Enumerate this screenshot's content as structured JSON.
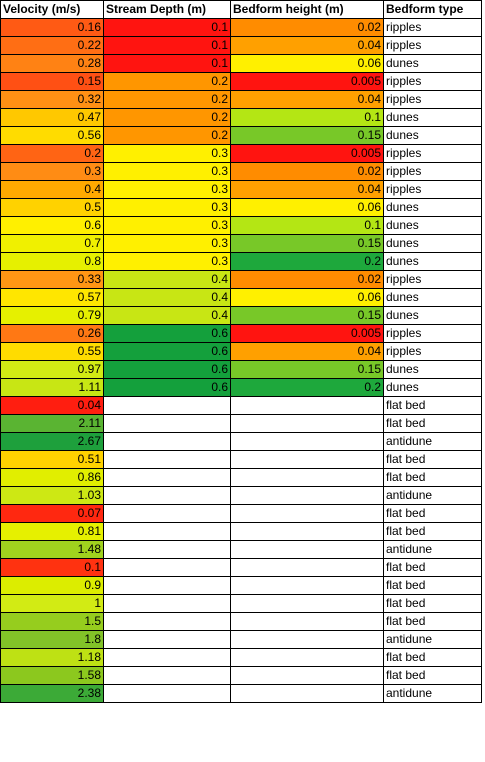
{
  "headers": [
    "Velocity (m/s)",
    "Stream Depth (m)",
    "Bedform height (m)",
    "Bedform type"
  ],
  "rows": [
    {
      "velocity": "0.16",
      "depth": "0.1",
      "height": "0.02",
      "type": "ripples",
      "vc": "#FF5A14",
      "dc": "#FF1410",
      "hc": "#FF8C00"
    },
    {
      "velocity": "0.22",
      "depth": "0.1",
      "height": "0.04",
      "type": "ripples",
      "vc": "#FF6E14",
      "dc": "#FF1410",
      "hc": "#FFA000"
    },
    {
      "velocity": "0.28",
      "depth": "0.1",
      "height": "0.06",
      "type": "dunes",
      "vc": "#FF8214",
      "dc": "#FF1410",
      "hc": "#FFF000"
    },
    {
      "velocity": "0.15",
      "depth": "0.2",
      "height": "0.005",
      "type": "ripples",
      "vc": "#FF5014",
      "dc": "#FF9600",
      "hc": "#FF1410"
    },
    {
      "velocity": "0.32",
      "depth": "0.2",
      "height": "0.04",
      "type": "ripples",
      "vc": "#FF9014",
      "dc": "#FF9600",
      "hc": "#FFA000"
    },
    {
      "velocity": "0.47",
      "depth": "0.2",
      "height": "0.1",
      "type": "dunes",
      "vc": "#FFC800",
      "dc": "#FF9600",
      "hc": "#B4E614"
    },
    {
      "velocity": "0.56",
      "depth": "0.2",
      "height": "0.15",
      "type": "dunes",
      "vc": "#FFDC00",
      "dc": "#FF9600",
      "hc": "#78C828"
    },
    {
      "velocity": "0.2",
      "depth": "0.3",
      "height": "0.005",
      "type": "ripples",
      "vc": "#FF6414",
      "dc": "#FFF000",
      "hc": "#FF1410"
    },
    {
      "velocity": "0.3",
      "depth": "0.3",
      "height": "0.02",
      "type": "ripples",
      "vc": "#FF8C14",
      "dc": "#FFF000",
      "hc": "#FF8C00"
    },
    {
      "velocity": "0.4",
      "depth": "0.3",
      "height": "0.04",
      "type": "ripples",
      "vc": "#FFAA00",
      "dc": "#FFF000",
      "hc": "#FFA000"
    },
    {
      "velocity": "0.5",
      "depth": "0.3",
      "height": "0.06",
      "type": "dunes",
      "vc": "#FFD200",
      "dc": "#FFF000",
      "hc": "#FFF000"
    },
    {
      "velocity": "0.6",
      "depth": "0.3",
      "height": "0.1",
      "type": "dunes",
      "vc": "#FFF000",
      "dc": "#FFF000",
      "hc": "#B4E614"
    },
    {
      "velocity": "0.7",
      "depth": "0.3",
      "height": "0.15",
      "type": "dunes",
      "vc": "#F0F000",
      "dc": "#FFF000",
      "hc": "#78C828"
    },
    {
      "velocity": "0.8",
      "depth": "0.3",
      "height": "0.2",
      "type": "dunes",
      "vc": "#E6F000",
      "dc": "#FFF000",
      "hc": "#1EA83C"
    },
    {
      "velocity": "0.33",
      "depth": "0.4",
      "height": "0.02",
      "type": "ripples",
      "vc": "#FF9614",
      "dc": "#C8E614",
      "hc": "#FF8C00"
    },
    {
      "velocity": "0.57",
      "depth": "0.4",
      "height": "0.06",
      "type": "dunes",
      "vc": "#FFE600",
      "dc": "#C8E614",
      "hc": "#FFF000"
    },
    {
      "velocity": "0.79",
      "depth": "0.4",
      "height": "0.15",
      "type": "dunes",
      "vc": "#E6F000",
      "dc": "#C8E614",
      "hc": "#78C828"
    },
    {
      "velocity": "0.26",
      "depth": "0.6",
      "height": "0.005",
      "type": "ripples",
      "vc": "#FF7814",
      "dc": "#14A03C",
      "hc": "#FF1410"
    },
    {
      "velocity": "0.55",
      "depth": "0.6",
      "height": "0.04",
      "type": "ripples",
      "vc": "#FFDC00",
      "dc": "#14A03C",
      "hc": "#FFA000"
    },
    {
      "velocity": "0.97",
      "depth": "0.6",
      "height": "0.15",
      "type": "dunes",
      "vc": "#D2EB14",
      "dc": "#14A03C",
      "hc": "#78C828"
    },
    {
      "velocity": "1.11",
      "depth": "0.6",
      "height": "0.2",
      "type": "dunes",
      "vc": "#C8E614",
      "dc": "#14A03C",
      "hc": "#1EA83C"
    },
    {
      "velocity": "0.04",
      "depth": "",
      "height": "",
      "type": "flat bed",
      "vc": "#FF1E10",
      "dc": "",
      "hc": ""
    },
    {
      "velocity": "2.11",
      "depth": "",
      "height": "",
      "type": "flat bed",
      "vc": "#5AB432",
      "dc": "",
      "hc": ""
    },
    {
      "velocity": "2.67",
      "depth": "",
      "height": "",
      "type": "antidune",
      "vc": "#1EA03C",
      "dc": "",
      "hc": ""
    },
    {
      "velocity": "0.51",
      "depth": "",
      "height": "",
      "type": "flat bed",
      "vc": "#FFD200",
      "dc": "",
      "hc": ""
    },
    {
      "velocity": "0.86",
      "depth": "",
      "height": "",
      "type": "flat bed",
      "vc": "#E1EE00",
      "dc": "",
      "hc": ""
    },
    {
      "velocity": "1.03",
      "depth": "",
      "height": "",
      "type": "antidune",
      "vc": "#CDE814",
      "dc": "",
      "hc": ""
    },
    {
      "velocity": "0.07",
      "depth": "",
      "height": "",
      "type": "flat bed",
      "vc": "#FF2810",
      "dc": "",
      "hc": ""
    },
    {
      "velocity": "0.81",
      "depth": "",
      "height": "",
      "type": "flat bed",
      "vc": "#E6F000",
      "dc": "",
      "hc": ""
    },
    {
      "velocity": "1.48",
      "depth": "",
      "height": "",
      "type": "antidune",
      "vc": "#A0D21E",
      "dc": "",
      "hc": ""
    },
    {
      "velocity": "0.1",
      "depth": "",
      "height": "",
      "type": "flat bed",
      "vc": "#FF3210",
      "dc": "",
      "hc": ""
    },
    {
      "velocity": "0.9",
      "depth": "",
      "height": "",
      "type": "flat bed",
      "vc": "#DCED00",
      "dc": "",
      "hc": ""
    },
    {
      "velocity": "1",
      "depth": "",
      "height": "",
      "type": "flat bed",
      "vc": "#D2EB14",
      "dc": "",
      "hc": ""
    },
    {
      "velocity": "1.5",
      "depth": "",
      "height": "",
      "type": "flat bed",
      "vc": "#96CD1E",
      "dc": "",
      "hc": ""
    },
    {
      "velocity": "1.8",
      "depth": "",
      "height": "",
      "type": "antidune",
      "vc": "#82C328",
      "dc": "",
      "hc": ""
    },
    {
      "velocity": "1.18",
      "depth": "",
      "height": "",
      "type": "flat bed",
      "vc": "#BEE114",
      "dc": "",
      "hc": ""
    },
    {
      "velocity": "1.58",
      "depth": "",
      "height": "",
      "type": "flat bed",
      "vc": "#8CC81E",
      "dc": "",
      "hc": ""
    },
    {
      "velocity": "2.38",
      "depth": "",
      "height": "",
      "type": "antidune",
      "vc": "#3CAA37",
      "dc": "",
      "hc": ""
    }
  ]
}
